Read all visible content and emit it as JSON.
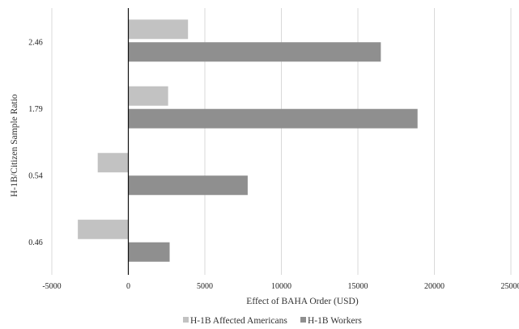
{
  "chart_data": {
    "type": "bar",
    "orientation": "horizontal",
    "categories": [
      "2.46",
      "1.79",
      "0.54",
      "0.46"
    ],
    "series": [
      {
        "name": "H-1B Affected Americans",
        "color": "#c2c2c2",
        "values": [
          3900,
          2600,
          -2000,
          -3300
        ]
      },
      {
        "name": "H-1B Workers",
        "color": "#8f8f8f",
        "values": [
          16500,
          18900,
          7800,
          2700
        ]
      }
    ],
    "xlabel": "Effect of BAHA Order (USD)",
    "ylabel": "H-1B/Citizen Sample Ratio",
    "xlim": [
      -5000,
      25000
    ],
    "xticks": [
      -5000,
      0,
      5000,
      10000,
      15000,
      20000,
      25000
    ],
    "xtick_labels": [
      "-5000",
      "0",
      "5000",
      "10000",
      "15000",
      "20000",
      "25000"
    ],
    "grid": "vertical",
    "legend": "bottom"
  }
}
